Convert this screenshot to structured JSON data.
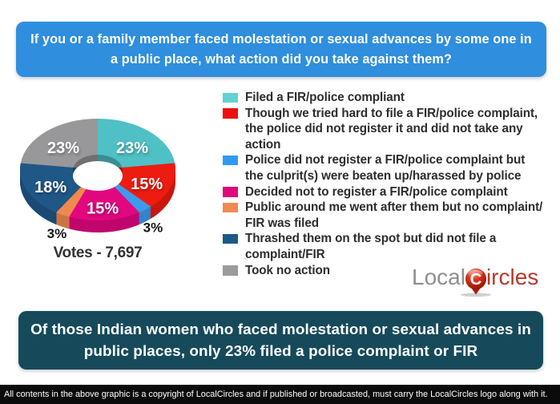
{
  "header": {
    "question": "If you or a family member faced molestation or sexual advances by some one in\na public place, what action did you take against them?"
  },
  "chart_data": {
    "type": "pie",
    "subtype": "3d-donut",
    "start_angle_deg": 0,
    "direction": "clockwise",
    "votes_label": "Votes - 7,697",
    "categories": [
      "Filed a FIR/police compliant",
      "Though we tried hard to file a FIR/police complaint, the police did not register it and did not take any action",
      "Police did not register a FIR/police complaint but the culprit(s) were beaten up/harassed by police",
      "Decided not to register a FIR/police complaint",
      "Public around me went after them but no complaint/ FIR was filed",
      "Thrashed them on the spot but did not file a complaint/FIR",
      "Took no action"
    ],
    "values": [
      23,
      15,
      3,
      15,
      3,
      18,
      23
    ],
    "labels": [
      "23%",
      "15%",
      "3%",
      "15%",
      "3%",
      "18%",
      "23%"
    ],
    "colors": [
      "#4fc0c5",
      "#ee1b10",
      "#3e9aec",
      "#e2077f",
      "#f0884f",
      "#1f5787",
      "#98989b"
    ],
    "legend_position": "right"
  },
  "legend": {
    "items": [
      {
        "color": "#62d2d2",
        "label": "Filed a FIR/police compliant"
      },
      {
        "color": "#ee1010",
        "label": "Though we tried hard to file a FIR/police complaint,\nthe police did not register it and did not take any\naction"
      },
      {
        "color": "#2e9bf2",
        "label": "Police did not register a FIR/police complaint but\nthe culprit(s) were beaten up/harassed by police"
      },
      {
        "color": "#df0979",
        "label": "Decided not to register a FIR/police complaint"
      },
      {
        "color": "#f08a52",
        "label": "Public around me went after them but no complaint/\nFIR was filed"
      },
      {
        "color": "#1d5a87",
        "label": "Thrashed them on the spot but did not file a\ncomplaint/FIR"
      },
      {
        "color": "#9b9b9d",
        "label": "Took no action"
      }
    ]
  },
  "logo": {
    "part1": "Local",
    "pin_letter": "C",
    "part2": "ircles",
    "gray": "#8f8f8f",
    "red": "#b6392b"
  },
  "conclusion": {
    "text": "Of those Indian women who faced molestation or sexual advances in\npublic places, only 23% filed a police complaint or FIR"
  },
  "footer": {
    "text": "All contents in the above graphic is a copyright of LocalCircles and if published or broadcasted, must carry the LocalCircles logo along with it."
  }
}
